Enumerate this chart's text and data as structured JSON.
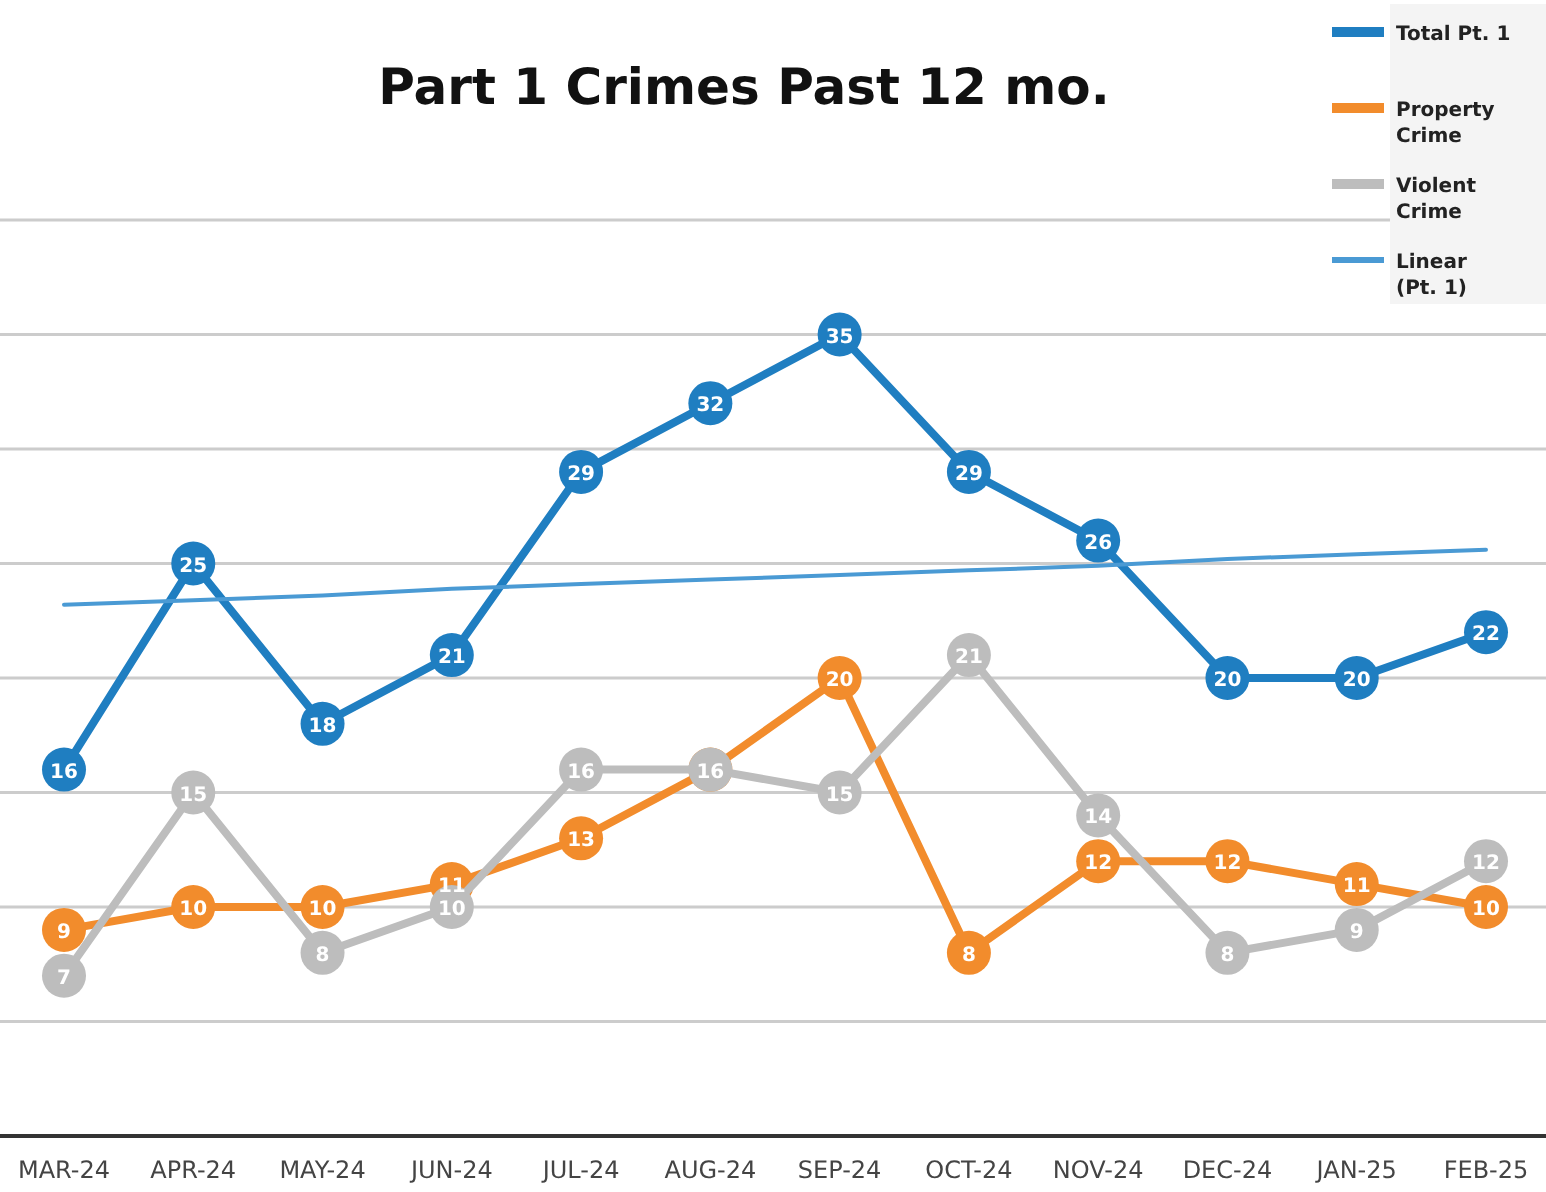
{
  "chart_data": {
    "type": "line",
    "title": "Part 1 Crimes Past 12 mo.",
    "categories": [
      "MAR-24",
      "APR-24",
      "MAY-24",
      "JUN-24",
      "JUL-24",
      "AUG-24",
      "SEP-24",
      "OCT-24",
      "NOV-24",
      "DEC-24",
      "JAN-25",
      "FEB-25"
    ],
    "series": [
      {
        "name": "Total Pt. 1",
        "color": "#1f7ec1",
        "values": [
          16,
          25,
          18,
          21,
          29,
          32,
          35,
          29,
          26,
          20,
          20,
          22
        ]
      },
      {
        "name": "Property Crime",
        "color": "#f28c2c",
        "values": [
          9,
          10,
          10,
          11,
          13,
          16,
          20,
          8,
          12,
          12,
          11,
          10
        ],
        "value_labels": [
          "9",
          "10",
          "10",
          "11",
          "13",
          null,
          "20",
          "8",
          "12",
          "12",
          "11",
          "10"
        ]
      },
      {
        "name": "Violent Crime",
        "color": "#bdbdbd",
        "values": [
          7,
          15,
          8,
          10,
          16,
          16,
          15,
          21,
          14,
          8,
          9,
          12
        ]
      },
      {
        "name": "Linear (Pt. 1)",
        "color": "#4a9ad4",
        "marker": "none",
        "data_labels": false,
        "values": [
          23.2,
          23.4,
          23.6,
          23.9,
          24.1,
          24.3,
          24.5,
          24.7,
          24.9,
          25.2,
          25.4,
          25.6
        ]
      }
    ],
    "ylim": [
      0,
      40
    ],
    "yticks": [
      {
        "value": 0,
        "label": null
      },
      {
        "value": 5,
        "label": null
      },
      {
        "value": 10,
        "label": null
      },
      {
        "value": 15,
        "label": null
      },
      {
        "value": 20,
        "label": null
      },
      {
        "value": 25,
        "label": null
      },
      {
        "value": 30,
        "label": null
      },
      {
        "value": 35,
        "label": null
      },
      {
        "value": 40,
        "label": null
      }
    ],
    "tick_labels": "x",
    "grid": "y",
    "legend": "top right",
    "marker": "circle",
    "line_style": "solid",
    "data_labels": true
  }
}
